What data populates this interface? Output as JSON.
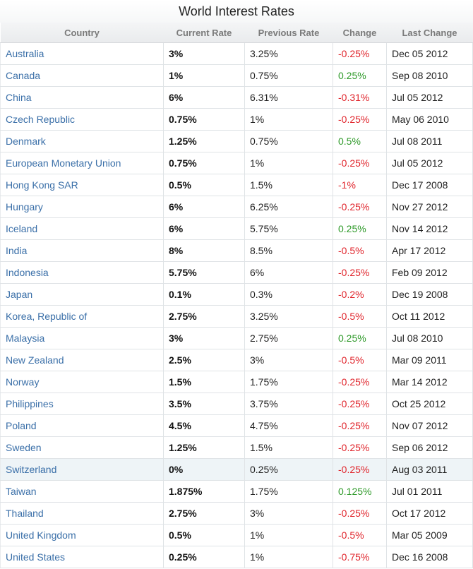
{
  "title": "World Interest Rates",
  "columns": [
    "Country",
    "Current Rate",
    "Previous Rate",
    "Change",
    "Last Change"
  ],
  "colors": {
    "link": "#3a6fa8",
    "negative": "#e0242b",
    "positive": "#2f9a2a",
    "highlight_row": "#eef4f7"
  },
  "rows": [
    {
      "country": "Australia",
      "current": "3%",
      "previous": "3.25%",
      "change": "-0.25%",
      "last": "Dec 05 2012"
    },
    {
      "country": "Canada",
      "current": "1%",
      "previous": "0.75%",
      "change": "0.25%",
      "last": "Sep 08 2010"
    },
    {
      "country": "China",
      "current": "6%",
      "previous": "6.31%",
      "change": "-0.31%",
      "last": "Jul 05 2012"
    },
    {
      "country": "Czech Republic",
      "current": "0.75%",
      "previous": "1%",
      "change": "-0.25%",
      "last": "May 06 2010"
    },
    {
      "country": "Denmark",
      "current": "1.25%",
      "previous": "0.75%",
      "change": "0.5%",
      "last": "Jul 08 2011"
    },
    {
      "country": "European Monetary Union",
      "current": "0.75%",
      "previous": "1%",
      "change": "-0.25%",
      "last": "Jul 05 2012"
    },
    {
      "country": "Hong Kong SAR",
      "current": "0.5%",
      "previous": "1.5%",
      "change": "-1%",
      "last": "Dec 17 2008"
    },
    {
      "country": "Hungary",
      "current": "6%",
      "previous": "6.25%",
      "change": "-0.25%",
      "last": "Nov 27 2012"
    },
    {
      "country": "Iceland",
      "current": "6%",
      "previous": "5.75%",
      "change": "0.25%",
      "last": "Nov 14 2012"
    },
    {
      "country": "India",
      "current": "8%",
      "previous": "8.5%",
      "change": "-0.5%",
      "last": "Apr 17 2012"
    },
    {
      "country": "Indonesia",
      "current": "5.75%",
      "previous": "6%",
      "change": "-0.25%",
      "last": "Feb 09 2012"
    },
    {
      "country": "Japan",
      "current": "0.1%",
      "previous": "0.3%",
      "change": "-0.2%",
      "last": "Dec 19 2008"
    },
    {
      "country": "Korea, Republic of",
      "current": "2.75%",
      "previous": "3.25%",
      "change": "-0.5%",
      "last": "Oct 11 2012"
    },
    {
      "country": "Malaysia",
      "current": "3%",
      "previous": "2.75%",
      "change": "0.25%",
      "last": "Jul 08 2010"
    },
    {
      "country": "New Zealand",
      "current": "2.5%",
      "previous": "3%",
      "change": "-0.5%",
      "last": "Mar 09 2011"
    },
    {
      "country": "Norway",
      "current": "1.5%",
      "previous": "1.75%",
      "change": "-0.25%",
      "last": "Mar 14 2012"
    },
    {
      "country": "Philippines",
      "current": "3.5%",
      "previous": "3.75%",
      "change": "-0.25%",
      "last": "Oct 25 2012"
    },
    {
      "country": "Poland",
      "current": "4.5%",
      "previous": "4.75%",
      "change": "-0.25%",
      "last": "Nov 07 2012"
    },
    {
      "country": "Sweden",
      "current": "1.25%",
      "previous": "1.5%",
      "change": "-0.25%",
      "last": "Sep 06 2012"
    },
    {
      "country": "Switzerland",
      "current": "0%",
      "previous": "0.25%",
      "change": "-0.25%",
      "last": "Aug 03 2011",
      "highlight": true
    },
    {
      "country": "Taiwan",
      "current": "1.875%",
      "previous": "1.75%",
      "change": "0.125%",
      "last": "Jul 01 2011"
    },
    {
      "country": "Thailand",
      "current": "2.75%",
      "previous": "3%",
      "change": "-0.25%",
      "last": "Oct 17 2012"
    },
    {
      "country": "United Kingdom",
      "current": "0.5%",
      "previous": "1%",
      "change": "-0.5%",
      "last": "Mar 05 2009"
    },
    {
      "country": "United States",
      "current": "0.25%",
      "previous": "1%",
      "change": "-0.75%",
      "last": "Dec 16 2008"
    }
  ]
}
